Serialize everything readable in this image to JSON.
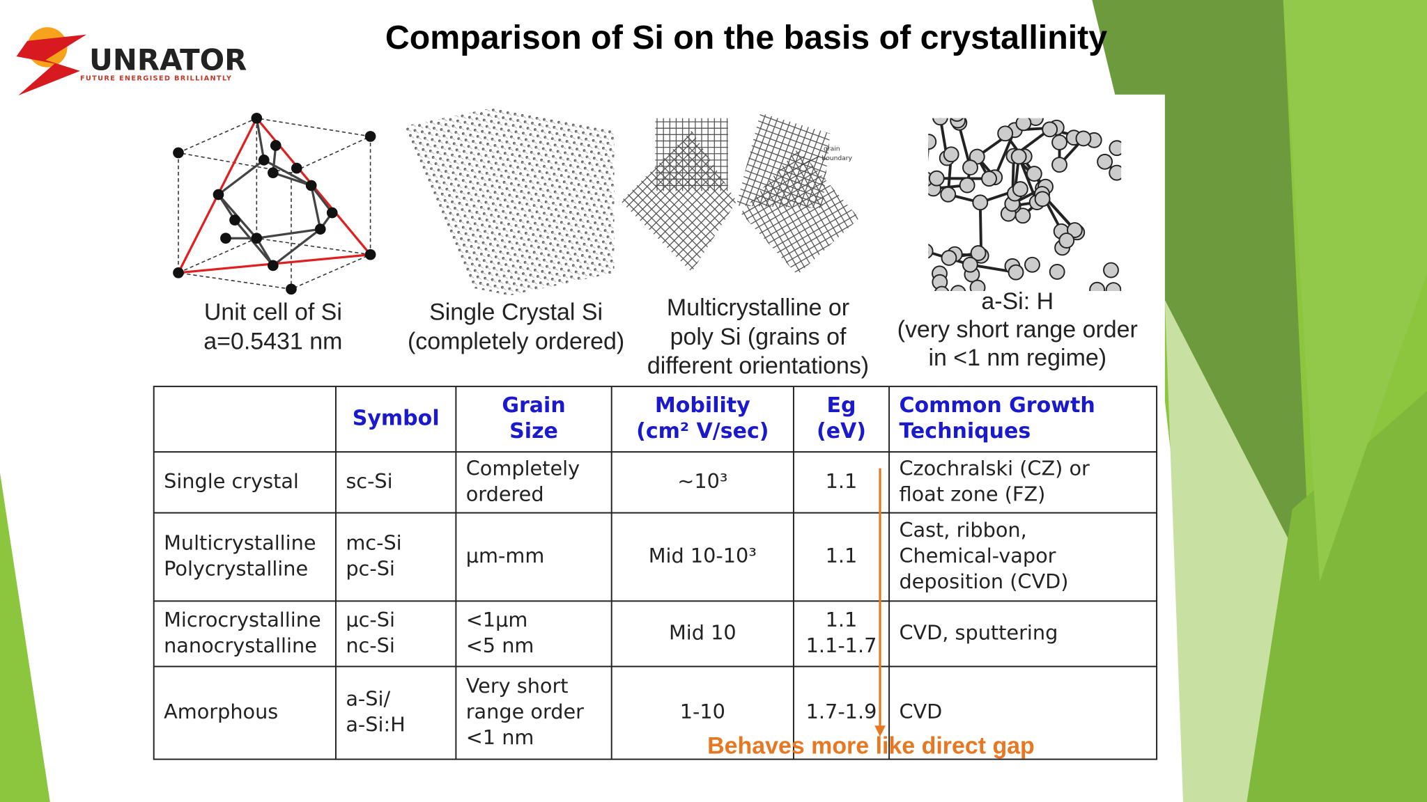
{
  "title": "Comparison of Si on the basis of crystallinity",
  "logo": {
    "name": "UNRATOR",
    "tagline": "FUTURE ENERGISED BRILLIANTLY"
  },
  "figures": [
    {
      "caption": [
        "Unit cell of Si",
        "a=0.5431 nm"
      ]
    },
    {
      "caption": [
        "Single  Crystal Si",
        "(completely ordered)"
      ]
    },
    {
      "caption": [
        "Multicrystalline or",
        "poly Si (grains of",
        "different orientations)"
      ],
      "label": [
        "grain",
        "boundary"
      ]
    },
    {
      "caption": [
        "a-Si: H",
        "(very short range order",
        "in <1 nm regime)"
      ]
    }
  ],
  "table": {
    "header": [
      [
        "Symbol"
      ],
      [
        "Grain",
        "Size"
      ],
      [
        "Mobility",
        "(cm² V/sec)"
      ],
      [
        "Eg",
        "(eV)"
      ],
      [
        "Common Growth",
        "Techniques"
      ]
    ],
    "rows": [
      [
        [
          "Single crystal"
        ],
        [
          "sc-Si"
        ],
        [
          "Completely",
          "ordered"
        ],
        [
          "~10³"
        ],
        [
          "1.1"
        ],
        [
          "Czochralski (CZ) or",
          "float zone (FZ)"
        ]
      ],
      [
        [
          "Multicrystalline",
          "Polycrystalline"
        ],
        [
          "mc-Si",
          "pc-Si"
        ],
        [
          "µm-mm"
        ],
        [
          "Mid 10-10³"
        ],
        [
          "1.1"
        ],
        [
          "Cast, ribbon,",
          "Chemical-vapor",
          "deposition (CVD)"
        ]
      ],
      [
        [
          "Microcrystalline",
          "nanocrystalline"
        ],
        [
          "µc-Si",
          "nc-Si"
        ],
        [
          "<1µm",
          "<5 nm"
        ],
        [
          "Mid 10"
        ],
        [
          "1.1",
          "1.1-1.7"
        ],
        [
          "CVD, sputtering"
        ]
      ],
      [
        [
          "Amorphous"
        ],
        [
          "a-Si/",
          "a-Si:H"
        ],
        [
          "Very short",
          "range order",
          "<1 nm"
        ],
        [
          "1-10"
        ],
        [
          "1.7-1.9"
        ],
        [
          "CVD"
        ]
      ]
    ]
  },
  "annotation": "Behaves more like direct gap"
}
